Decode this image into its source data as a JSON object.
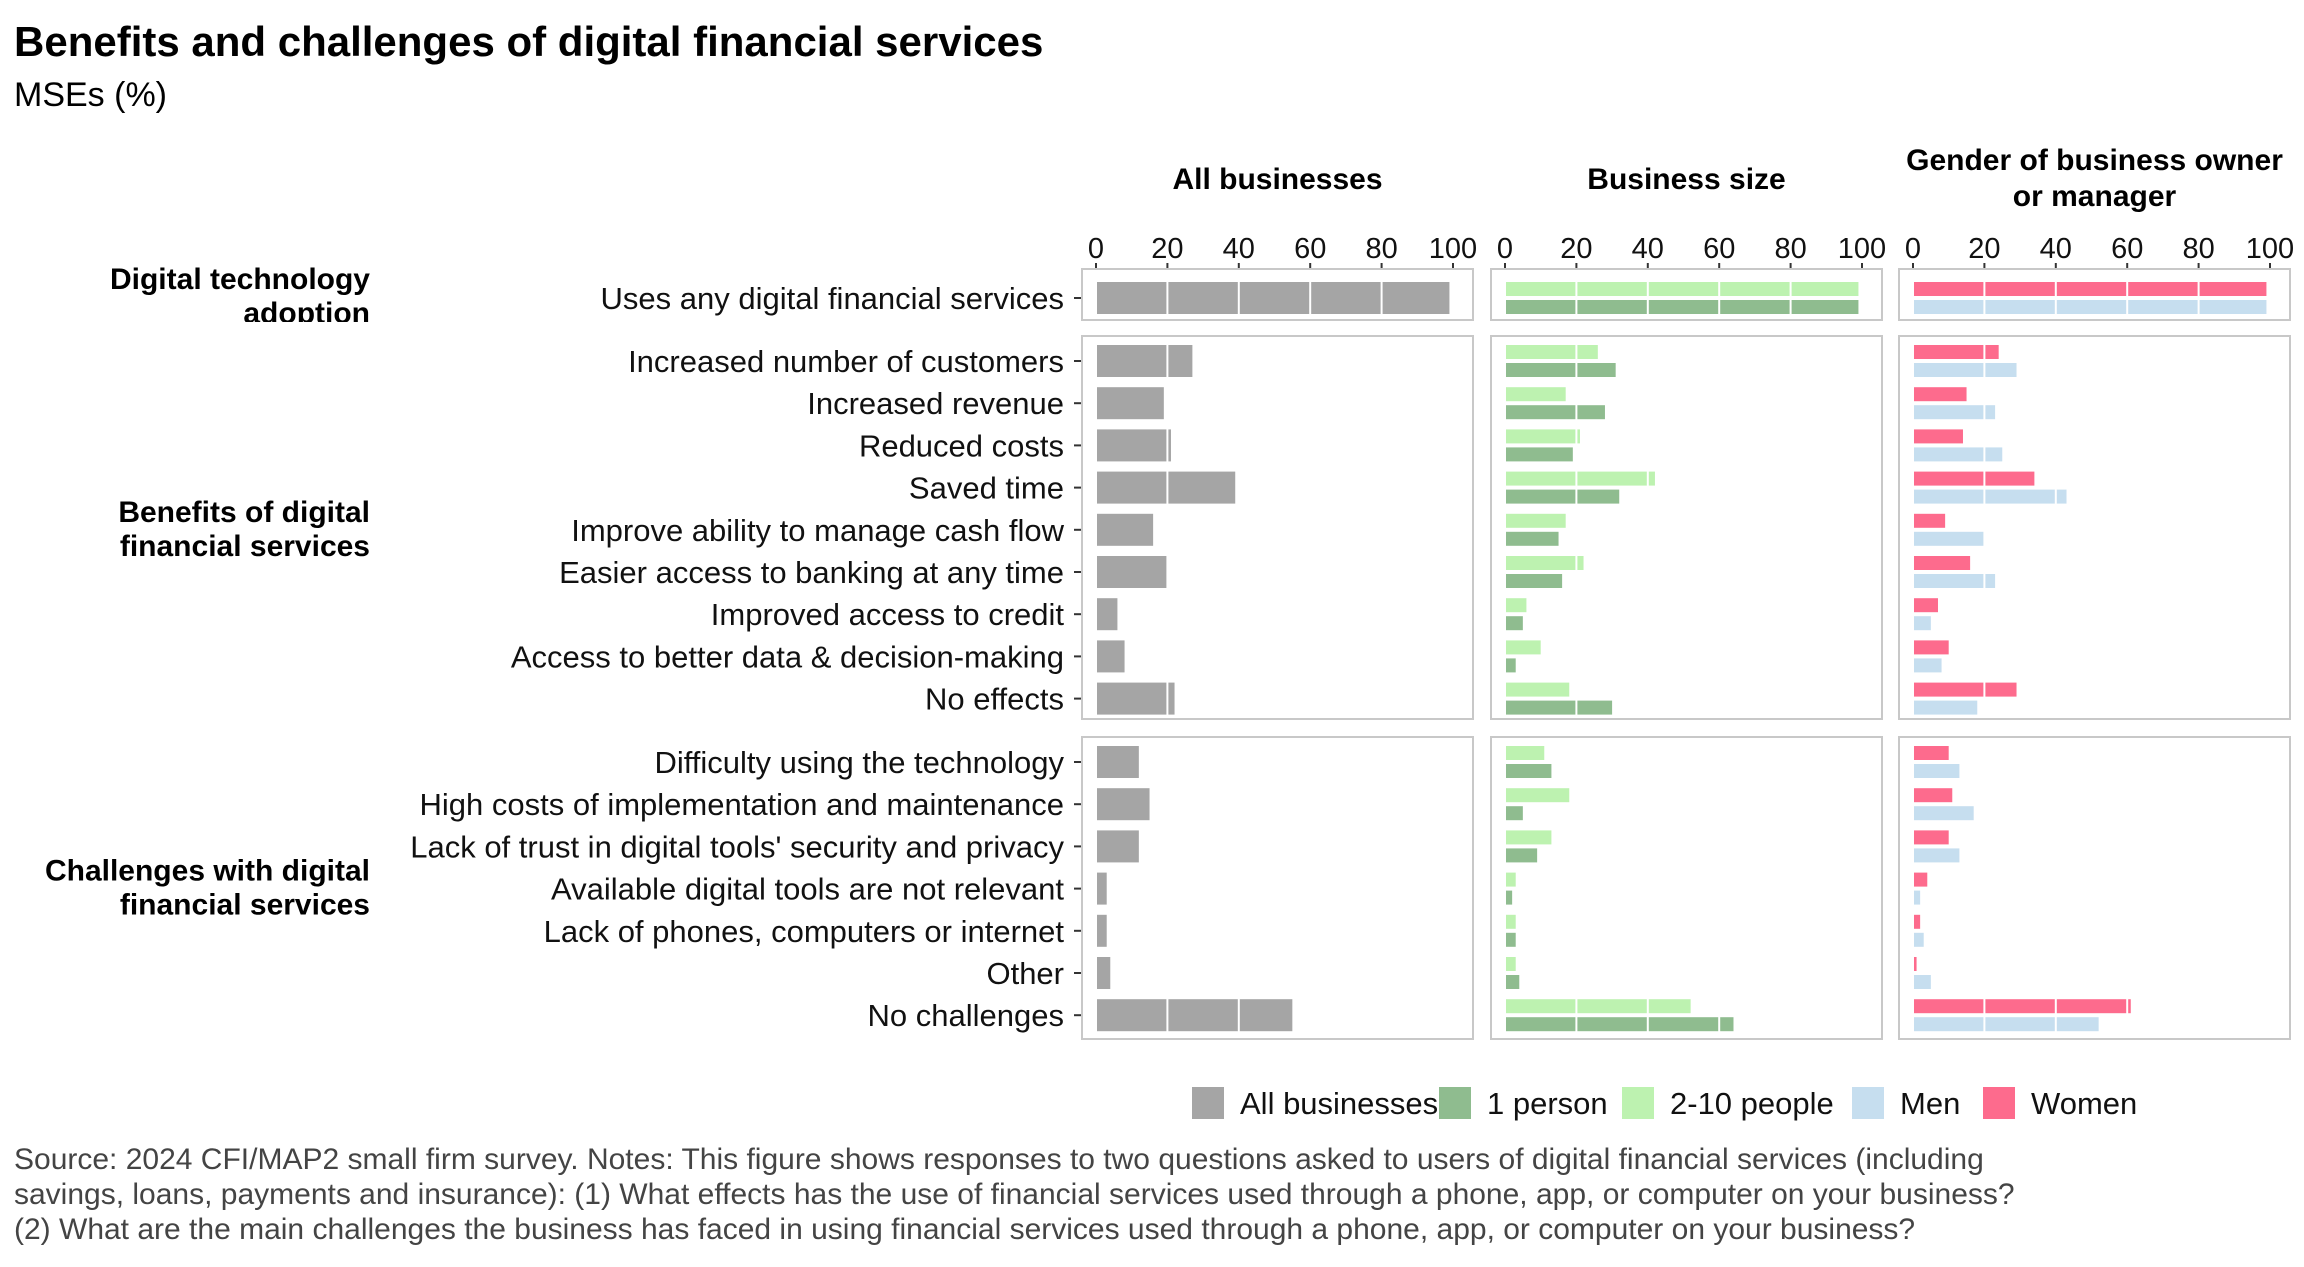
{
  "title": "Benefits and challenges of digital financial services",
  "subtitle": "MSEs (%)",
  "colors": {
    "All businesses": "#a5a5a5",
    "1 person": "#8fbc8f",
    "2-10 people": "#bdf2b0",
    "Men": "#c6deef",
    "Women": "#fd6b8d"
  },
  "chart_data": {
    "type": "bar",
    "orientation": "horizontal",
    "xlim": [
      0,
      100
    ],
    "x_ticks": [
      0,
      20,
      40,
      60,
      80,
      100
    ],
    "panels": [
      {
        "title": "All businesses",
        "series": [
          "All businesses"
        ]
      },
      {
        "title": "Business size",
        "series": [
          "2-10 people",
          "1 person"
        ]
      },
      {
        "title": "Gender of business owner or manager",
        "title_lines": [
          "Gender of business owner",
          "or manager"
        ],
        "series": [
          "Women",
          "Men"
        ]
      }
    ],
    "groups": [
      {
        "title": "Digital technology adoption",
        "title_lines": [
          "Digital technology",
          "adoption"
        ],
        "categories": [
          "Uses any digital financial services"
        ],
        "values": {
          "All businesses": [
            99
          ],
          "2-10 people": [
            99
          ],
          "1 person": [
            99
          ],
          "Women": [
            99
          ],
          "Men": [
            99
          ]
        }
      },
      {
        "title": "Benefits of digital financial services",
        "title_lines": [
          "Benefits of digital",
          "financial services"
        ],
        "categories": [
          "Increased number of customers",
          "Increased revenue",
          "Reduced costs",
          "Saved time",
          "Improve ability to manage cash flow",
          "Easier access to banking at any time",
          "Improved access to credit",
          "Access to better data & decision-making",
          "No effects"
        ],
        "values": {
          "All businesses": [
            27,
            19,
            21,
            39,
            16,
            20,
            6,
            8,
            22
          ],
          "2-10 people": [
            26,
            17,
            21,
            42,
            17,
            22,
            6,
            10,
            18
          ],
          "1 person": [
            31,
            28,
            19,
            32,
            15,
            16,
            5,
            3,
            30
          ],
          "Women": [
            24,
            15,
            14,
            34,
            9,
            16,
            7,
            10,
            29
          ],
          "Men": [
            29,
            23,
            25,
            43,
            20,
            23,
            5,
            8,
            18
          ]
        }
      },
      {
        "title": "Challenges with digital financial services",
        "title_lines": [
          "Challenges with digital",
          "financial services"
        ],
        "categories": [
          "Difficulty using the technology",
          "High costs of implementation and maintenance",
          "Lack of trust in digital tools' security and privacy",
          "Available digital tools are not relevant",
          "Lack of phones, computers or internet",
          "Other",
          "No challenges"
        ],
        "values": {
          "All businesses": [
            12,
            15,
            12,
            3,
            3,
            4,
            55
          ],
          "2-10 people": [
            11,
            18,
            13,
            3,
            3,
            3,
            52
          ],
          "1 person": [
            13,
            5,
            9,
            2,
            3,
            4,
            64
          ],
          "Women": [
            10,
            11,
            10,
            4,
            2,
            1,
            61
          ],
          "Men": [
            13,
            17,
            13,
            2,
            3,
            5,
            52
          ]
        }
      }
    ],
    "legend": [
      "All businesses",
      "1 person",
      "2-10 people",
      "Men",
      "Women"
    ],
    "legend_position": "bottom-right"
  },
  "source_note": [
    "Source: 2024 CFI/MAP2 small firm survey. Notes: This figure shows responses to two questions asked to users of digital financial services (including",
    "savings, loans, payments and insurance): (1) What effects has the use of financial services used through a phone, app, or computer on your business?",
    "(2) What are the main challenges the business has faced in using financial services used through a phone, app, or computer on your business?"
  ]
}
